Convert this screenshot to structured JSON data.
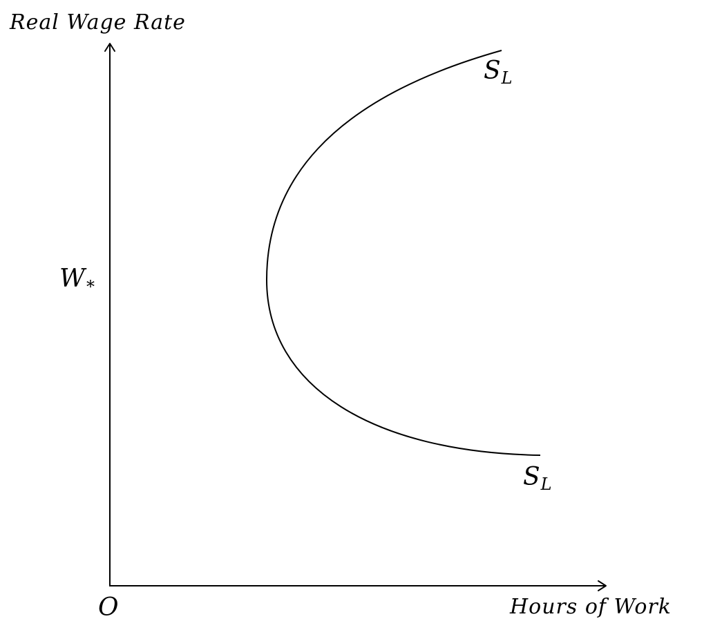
{
  "diagram": {
    "y_axis_label": "Real Wage Rate",
    "x_axis_label": "Hours of Work",
    "origin_label": "O",
    "wage_level": {
      "symbol": "W",
      "subscript": "*"
    },
    "curve_label_upper": {
      "symbol": "S",
      "subscript": "L"
    },
    "curve_label_lower": {
      "symbol": "S",
      "subscript": "L"
    }
  },
  "colors": {
    "ink": "#000000",
    "background": "#ffffff"
  }
}
